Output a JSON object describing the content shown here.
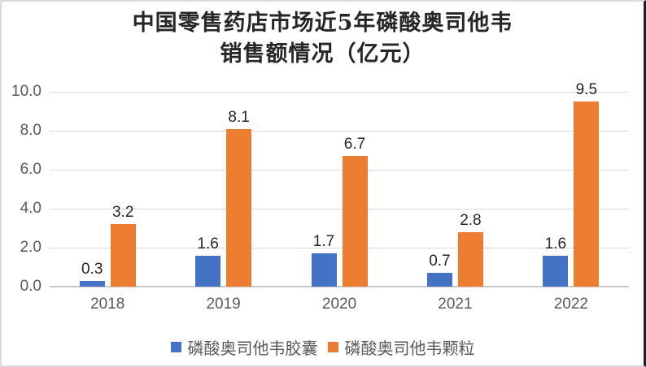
{
  "chart_data": {
    "type": "bar",
    "title": "中国零售药店市场近5年磷酸奥司他韦销售额情况（亿元）",
    "title_lines": [
      "中国零售药店市场近5年磷酸奥司他韦",
      "销售额情况（亿元）"
    ],
    "categories": [
      "2018",
      "2019",
      "2020",
      "2021",
      "2022"
    ],
    "series": [
      {
        "name": "磷酸奥司他韦胶囊",
        "color": "#4472C4",
        "values": [
          0.3,
          1.6,
          1.7,
          0.7,
          1.6
        ]
      },
      {
        "name": "磷酸奥司他韦颗粒",
        "color": "#ED7D31",
        "values": [
          3.2,
          8.1,
          6.7,
          2.8,
          9.5
        ]
      }
    ],
    "y_ticks": [
      "10.0",
      "8.0",
      "6.0",
      "4.0",
      "2.0",
      "0.0"
    ],
    "ylim": [
      0,
      10
    ],
    "grid": true,
    "legend_position": "bottom",
    "colors": {
      "grid": "#D9D9D9",
      "axis_line": "#C9C9C9",
      "axis_text": "#595959",
      "data_label": "#262626",
      "title_text": "#262626"
    }
  }
}
